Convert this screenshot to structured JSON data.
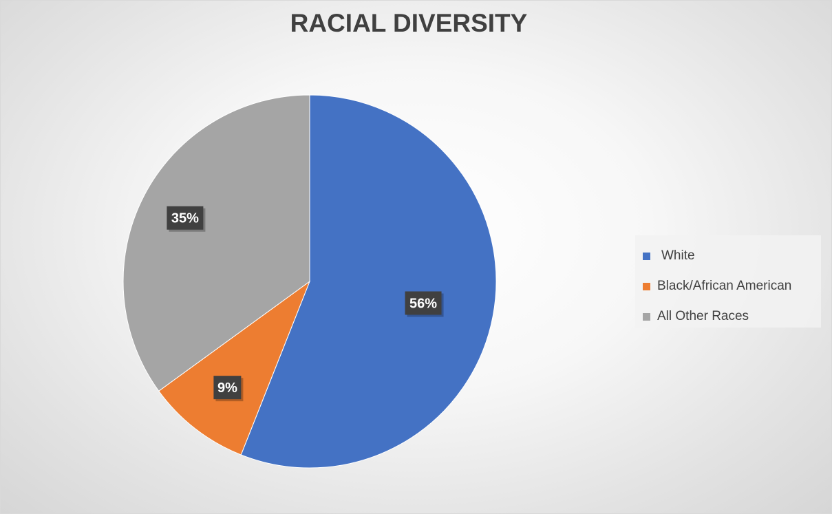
{
  "chart_data": {
    "type": "pie",
    "title": "RACIAL DIVERSITY",
    "categories": [
      "White",
      "Black/African American",
      "All Other Races"
    ],
    "values": [
      56,
      9,
      35
    ],
    "data_labels": [
      "56%",
      "9%",
      "35%"
    ],
    "colors": [
      "#4472C4",
      "#ED7D31",
      "#A5A5A5"
    ],
    "legend_position": "right",
    "start_angle_deg": 0,
    "direction": "clockwise"
  }
}
